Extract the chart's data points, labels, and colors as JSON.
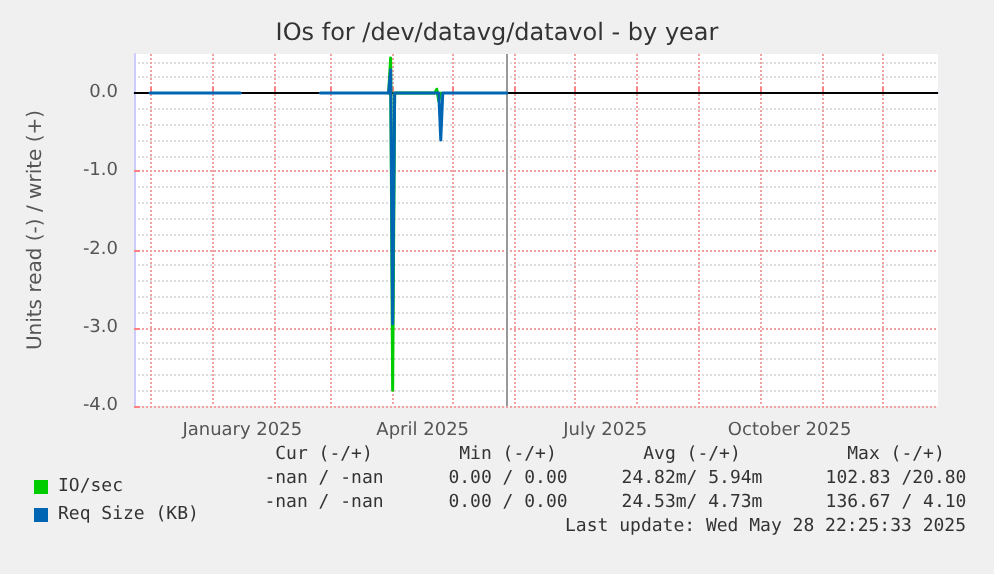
{
  "chart_data": {
    "type": "line",
    "title": "IOs for /dev/datavg/datavol - by year",
    "ylabel": "Units read (-) / write (+)",
    "xlim": [
      "2024-11-23",
      "2025-12-29"
    ],
    "xticks": [
      {
        "value": "2024-12-01",
        "label": null
      },
      {
        "value": "2025-01-01",
        "label": null
      },
      {
        "value": "2025-01-16",
        "label": "January 2025"
      },
      {
        "value": "2025-02-01",
        "label": null
      },
      {
        "value": "2025-03-01",
        "label": null
      },
      {
        "value": "2025-04-01",
        "label": null
      },
      {
        "value": "2025-04-16",
        "label": "April 2025"
      },
      {
        "value": "2025-05-01",
        "label": null
      },
      {
        "value": "2025-06-01",
        "label": null
      },
      {
        "value": "2025-07-01",
        "label": null
      },
      {
        "value": "2025-07-16",
        "label": "July 2025"
      },
      {
        "value": "2025-08-01",
        "label": null
      },
      {
        "value": "2025-09-01",
        "label": null
      },
      {
        "value": "2025-10-01",
        "label": null
      },
      {
        "value": "2025-10-16",
        "label": "October 2025"
      },
      {
        "value": "2025-11-01",
        "label": null
      },
      {
        "value": "2025-12-01",
        "label": null
      }
    ],
    "ylim": [
      -4,
      0.5
    ],
    "yticks": [
      {
        "value": -4,
        "label": "-4.0"
      },
      {
        "value": -3,
        "label": "-3.0"
      },
      {
        "value": -2,
        "label": "-2.0"
      },
      {
        "value": -1,
        "label": "-1.0"
      },
      {
        "value": 0,
        "label": "0.0"
      }
    ],
    "grid": true,
    "legend": "bottom left",
    "marker": "none",
    "line_style": "solid",
    "ref_lines": [
      {
        "axis": "y",
        "value": 0,
        "color": "#000000"
      },
      {
        "axis": "x",
        "value": "2025-05-28",
        "color": "#999999"
      }
    ],
    "series": [
      {
        "name": "IO/sec",
        "color": "#00cc00",
        "x": [
          "2025-03-30",
          "2025-03-31",
          "2025-04-01",
          "2025-04-02",
          "2025-04-22",
          "2025-04-23",
          "2025-04-24",
          "2025-04-25"
        ],
        "values": [
          0,
          0.45,
          -3.8,
          0,
          0,
          0.05,
          -0.1,
          0
        ]
      },
      {
        "name": "Req Size (KB)",
        "color": "#0066b3",
        "x": [
          "2024-12-01",
          "2025-01-15",
          "2025-01-16",
          "2025-02-24",
          "2025-03-30",
          "2025-03-31",
          "2025-04-01",
          "2025-04-02",
          "2025-04-24",
          "2025-04-25",
          "2025-04-26",
          "2025-05-28"
        ],
        "values": [
          0,
          0,
          null,
          0,
          0,
          0.3,
          -2.95,
          0,
          0,
          -0.6,
          0,
          0
        ]
      }
    ],
    "annotations": [
      "Cur (-/+)",
      "Min (-/+)",
      "Avg (-/+)",
      "Max (-/+)",
      "-nan / -nan",
      "0.00 / 0.00",
      "24.82m/ 5.94m",
      "102.83 /20.80",
      "-nan / -nan",
      "0.00 / 0.00",
      "24.53m/ 4.73m",
      "136.67 / 4.10",
      "Last update: Wed May 28 22:25:33 2025"
    ]
  }
}
